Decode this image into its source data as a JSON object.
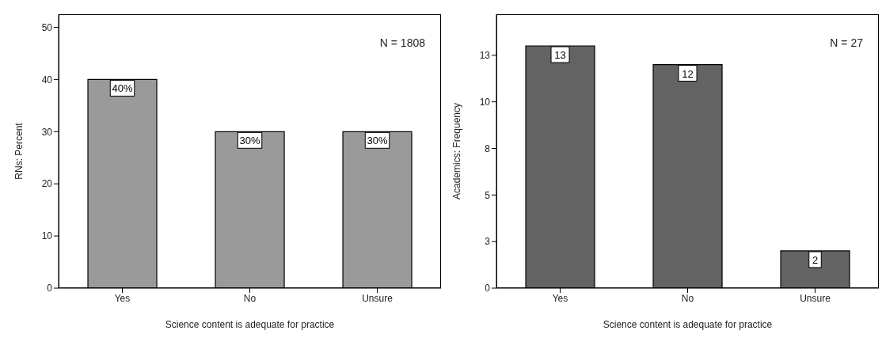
{
  "chart_data": [
    {
      "type": "bar",
      "categories": [
        "Yes",
        "No",
        "Unsure"
      ],
      "values": [
        40,
        30,
        30
      ],
      "value_labels": [
        "40%",
        "30%",
        "30%"
      ],
      "color": "#9a9a9a",
      "xlabel": "Science content  is adequate for practice",
      "ylabel": "RNs: Percent",
      "ylim": [
        0,
        52.5
      ],
      "yticks": [
        0,
        10,
        20,
        30,
        40,
        50
      ],
      "annotations": [
        "N = 1808"
      ]
    },
    {
      "type": "bar",
      "categories": [
        "Yes",
        "No",
        "Unsure"
      ],
      "values": [
        13,
        12,
        2
      ],
      "data_labels": true,
      "color": "#636363",
      "xlabel": "Science content is adequate for practice",
      "ylabel": "Academics: Frequency",
      "ylim": [
        0,
        14.7
      ],
      "yticks": [
        0,
        {
          "value": 2.5,
          "label": "3"
        },
        5,
        {
          "value": 7.5,
          "label": "8"
        },
        10,
        {
          "value": 12.5,
          "label": "13"
        }
      ],
      "annotations": [
        "N = 27"
      ]
    }
  ]
}
